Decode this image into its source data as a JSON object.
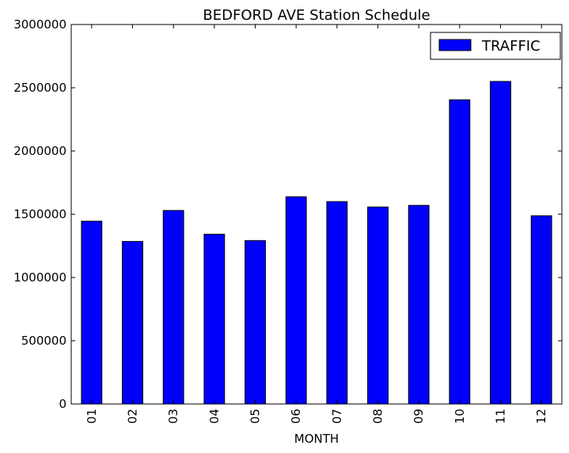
{
  "chart_data": {
    "type": "bar",
    "title": "BEDFORD AVE Station Schedule",
    "xlabel": "MONTH",
    "ylabel": "",
    "categories": [
      "01",
      "02",
      "03",
      "04",
      "05",
      "06",
      "07",
      "08",
      "09",
      "10",
      "11",
      "12"
    ],
    "series": [
      {
        "name": "TRAFFIC",
        "values": [
          1445000,
          1285000,
          1530000,
          1342000,
          1292000,
          1638000,
          1600000,
          1557000,
          1570000,
          2405000,
          2550000,
          1488000
        ]
      }
    ],
    "ylim": [
      0,
      3000000
    ],
    "yticks": [
      "0",
      "500000",
      "1000000",
      "1500000",
      "2000000",
      "2500000",
      "3000000"
    ],
    "grid": false,
    "legend_position": "top-right",
    "colors": {
      "bar": "#0000ff",
      "edge": "#000000"
    }
  }
}
